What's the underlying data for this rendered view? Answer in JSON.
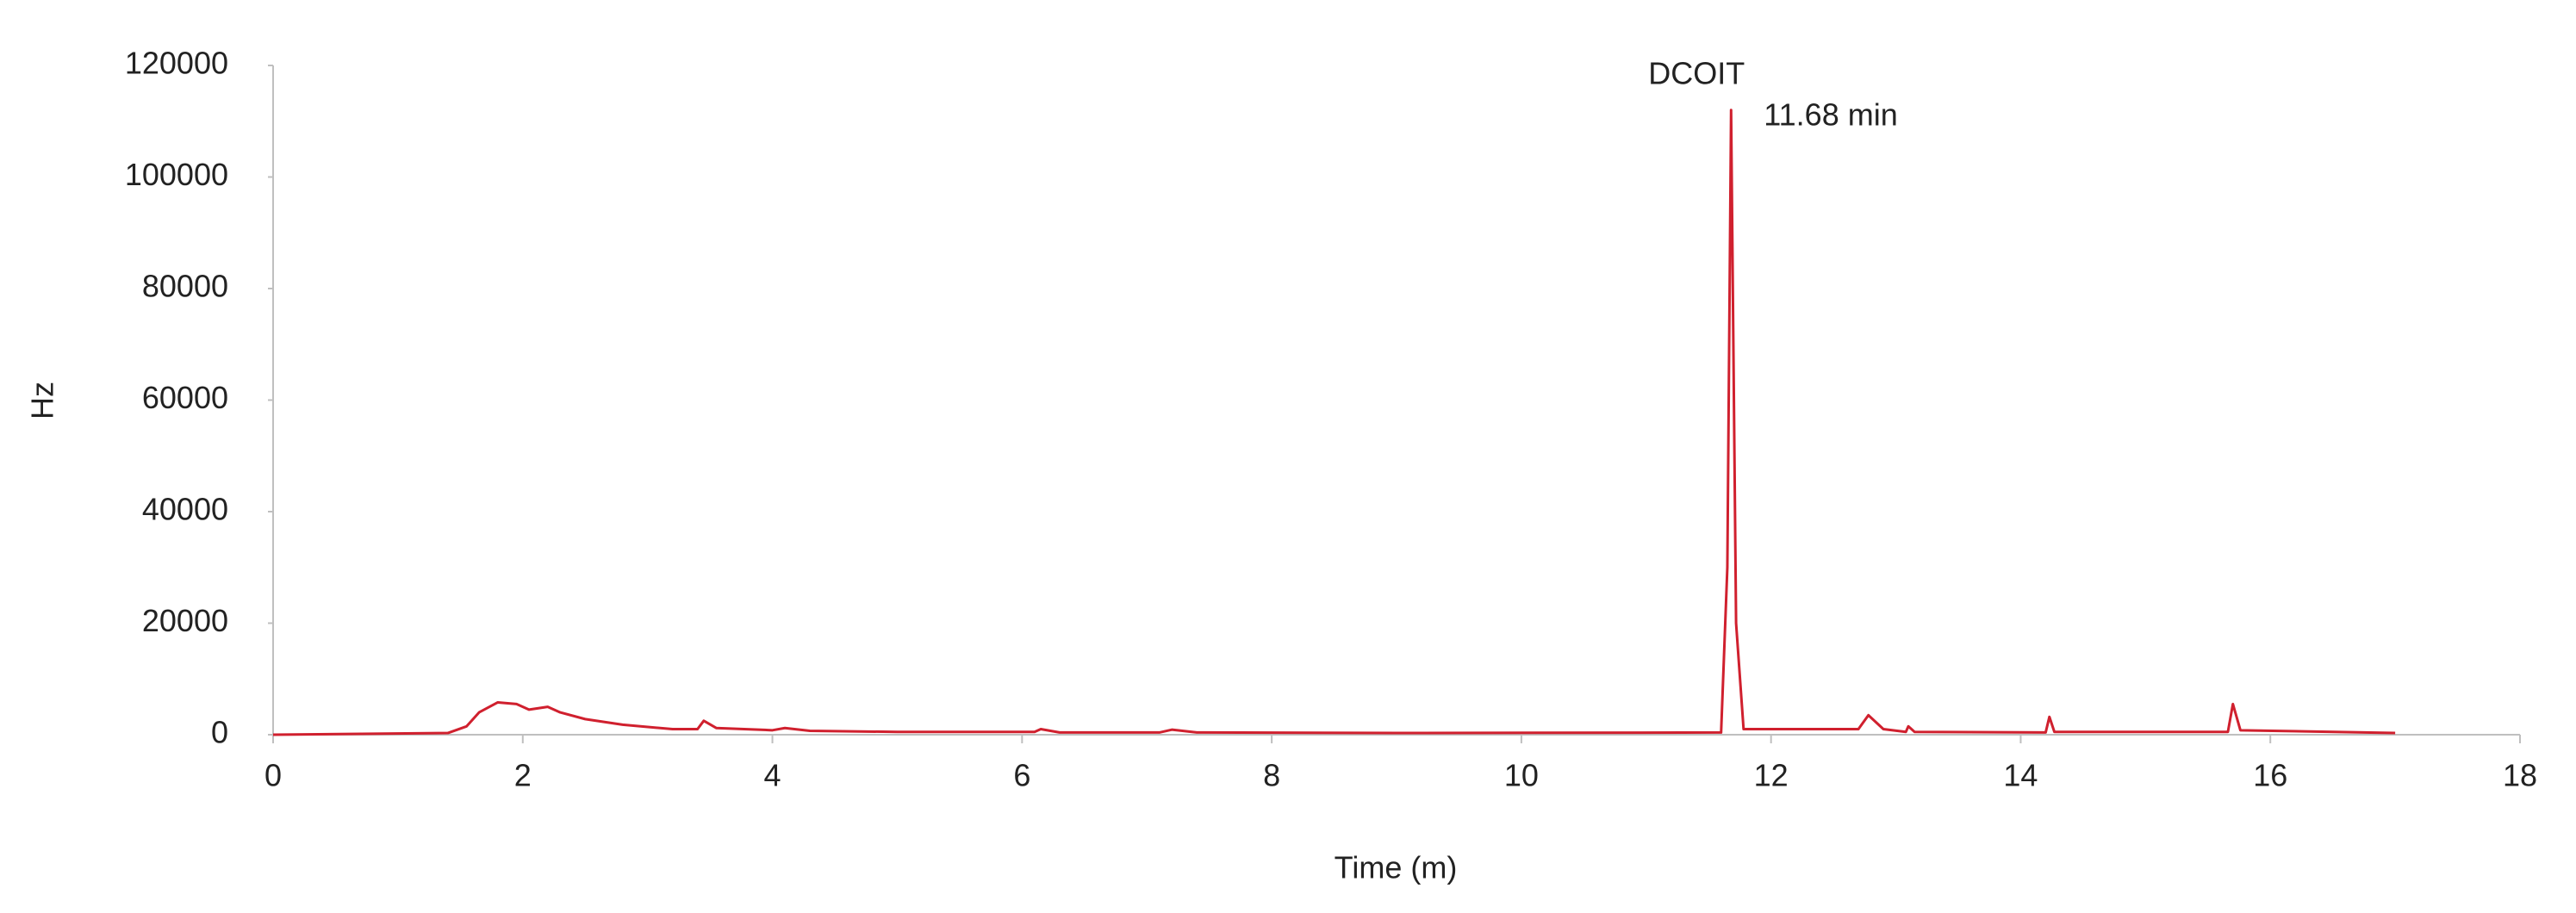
{
  "chart_data": {
    "type": "line",
    "x_label": "Time (m)",
    "y_label": "Hz",
    "annotations": [
      "DCOIT",
      "11.68 min"
    ],
    "x": [
      0,
      1.4,
      1.55,
      1.65,
      1.8,
      1.95,
      2.05,
      2.2,
      2.3,
      2.5,
      2.8,
      3.2,
      3.4,
      3.45,
      3.55,
      4.0,
      4.1,
      4.3,
      5.0,
      6.1,
      6.15,
      6.3,
      7.1,
      7.2,
      7.4,
      9,
      11.6,
      11.65,
      11.68,
      11.72,
      11.78,
      12.7,
      12.78,
      12.9,
      13.08,
      13.1,
      13.15,
      14.2,
      14.23,
      14.27,
      15.66,
      15.7,
      15.76,
      17.0
    ],
    "values": [
      0,
      300,
      1500,
      4000,
      5800,
      5500,
      4500,
      5000,
      4000,
      2800,
      1800,
      1000,
      1000,
      2500,
      1200,
      800,
      1200,
      700,
      500,
      500,
      1000,
      400,
      400,
      900,
      400,
      300,
      400,
      30000,
      112000,
      20000,
      1000,
      1000,
      3500,
      1000,
      500,
      1500,
      500,
      400,
      3200,
      500,
      500,
      5500,
      800,
      300
    ],
    "color": "#d0202e",
    "xlim": [
      0,
      18
    ],
    "xticks": [
      0,
      2,
      4,
      6,
      8,
      10,
      12,
      14,
      16,
      18
    ],
    "ylim": [
      0,
      120000
    ],
    "yticks": [
      0,
      20000,
      40000,
      60000,
      80000,
      100000,
      120000
    ],
    "grid": false
  }
}
